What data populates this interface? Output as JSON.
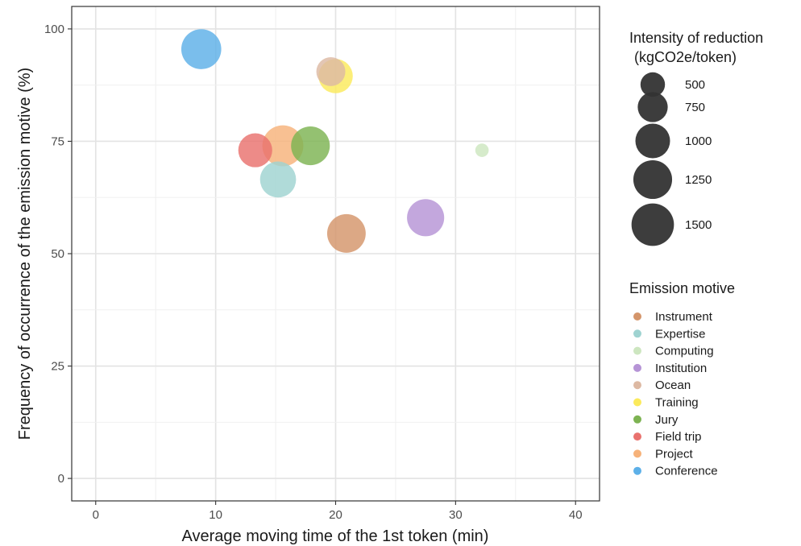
{
  "chart_data": {
    "type": "scatter",
    "xlabel": "Average moving time of the 1st token (min)",
    "ylabel": "Frequency of occurrence of the emission motive (%)",
    "xlim": [
      -2,
      42
    ],
    "ylim": [
      -5,
      105
    ],
    "x_ticks": [
      0,
      10,
      20,
      30,
      40
    ],
    "y_ticks": [
      0,
      25,
      50,
      75,
      100
    ],
    "grid": true,
    "size_legend": {
      "title_line1": "Intensity of reduction",
      "title_line2": "(kgCO2e/token)",
      "values": [
        500,
        750,
        1000,
        1250,
        1500
      ]
    },
    "color_legend": {
      "title": "Emission motive"
    },
    "series": [
      {
        "name": "Instrument",
        "color": "#D4956A",
        "x": 20.9,
        "y": 54.5,
        "size": 1240
      },
      {
        "name": "Expertise",
        "color": "#9FD3D1",
        "x": 15.2,
        "y": 66.5,
        "size": 1080
      },
      {
        "name": "Computing",
        "color": "#CDE6C0",
        "x": 32.2,
        "y": 73,
        "size": 150
      },
      {
        "name": "Institution",
        "color": "#B694D6",
        "x": 27.5,
        "y": 58,
        "size": 1150
      },
      {
        "name": "Ocean",
        "color": "#DDB9A3",
        "x": 19.6,
        "y": 90.5,
        "size": 700
      },
      {
        "name": "Training",
        "color": "#FBEA5C",
        "x": 20.0,
        "y": 89.5,
        "size": 980
      },
      {
        "name": "Jury",
        "color": "#7DB352",
        "x": 17.9,
        "y": 74,
        "size": 1250
      },
      {
        "name": "Field trip",
        "color": "#E9726E",
        "x": 13.3,
        "y": 73,
        "size": 960
      },
      {
        "name": "Project",
        "color": "#F6B27A",
        "x": 15.6,
        "y": 74,
        "size": 1400
      },
      {
        "name": "Conference",
        "color": "#5DB0E8",
        "x": 8.8,
        "y": 95.5,
        "size": 1330
      }
    ]
  }
}
